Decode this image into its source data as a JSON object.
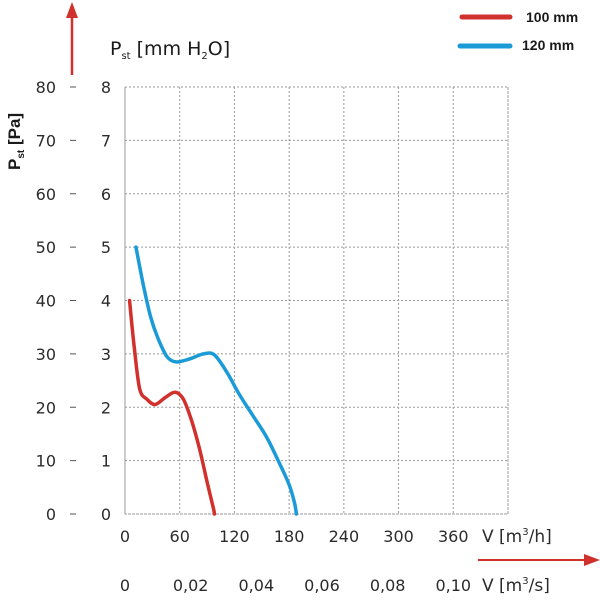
{
  "chart_data": {
    "type": "line",
    "y_axis_left": {
      "label_main": "P",
      "label_sub": "st",
      "label_unit": " [Pa]",
      "ticks": [
        "0",
        "10",
        "20",
        "30",
        "40",
        "50",
        "60",
        "70",
        "80"
      ],
      "range": [
        0,
        80
      ]
    },
    "y_axis_right": {
      "label_main": "P",
      "label_sub": "st",
      "label_unit_pre": " [mm H",
      "label_unit_sub": "2",
      "label_unit_post": "O]",
      "ticks": [
        "0",
        "1",
        "2",
        "3",
        "4",
        "5",
        "6",
        "7",
        "8"
      ],
      "range": [
        0,
        8
      ]
    },
    "x_axis_top": {
      "label_pre": "V [m",
      "label_sup": "3",
      "label_post": "/h]",
      "ticks": [
        "0",
        "60",
        "120",
        "180",
        "240",
        "300",
        "360"
      ],
      "range": [
        0,
        420
      ]
    },
    "x_axis_bottom": {
      "label_pre": "V [m",
      "label_sup": "3",
      "label_post": "/s]",
      "ticks": [
        "0",
        "0,02",
        "0,04",
        "0,06",
        "0,08",
        "0,10"
      ]
    },
    "grid": true,
    "legend_position": "top-right",
    "series": [
      {
        "name": "100 mm",
        "color": "#d0312d",
        "points": [
          [
            5,
            4.0
          ],
          [
            10,
            3.15
          ],
          [
            16,
            2.35
          ],
          [
            24,
            2.15
          ],
          [
            33,
            2.05
          ],
          [
            44,
            2.18
          ],
          [
            55,
            2.28
          ],
          [
            64,
            2.15
          ],
          [
            73,
            1.75
          ],
          [
            82,
            1.2
          ],
          [
            90,
            0.6
          ],
          [
            97,
            0.1
          ],
          [
            98,
            0.0
          ]
        ]
      },
      {
        "name": "120 mm",
        "color": "#1a9bd7",
        "points": [
          [
            12,
            5.0
          ],
          [
            20,
            4.3
          ],
          [
            28,
            3.7
          ],
          [
            36,
            3.3
          ],
          [
            46,
            2.95
          ],
          [
            56,
            2.85
          ],
          [
            70,
            2.9
          ],
          [
            86,
            3.0
          ],
          [
            98,
            2.98
          ],
          [
            112,
            2.65
          ],
          [
            125,
            2.25
          ],
          [
            140,
            1.85
          ],
          [
            155,
            1.45
          ],
          [
            168,
            1.0
          ],
          [
            180,
            0.55
          ],
          [
            186,
            0.2
          ],
          [
            188,
            0.0
          ]
        ]
      }
    ]
  }
}
